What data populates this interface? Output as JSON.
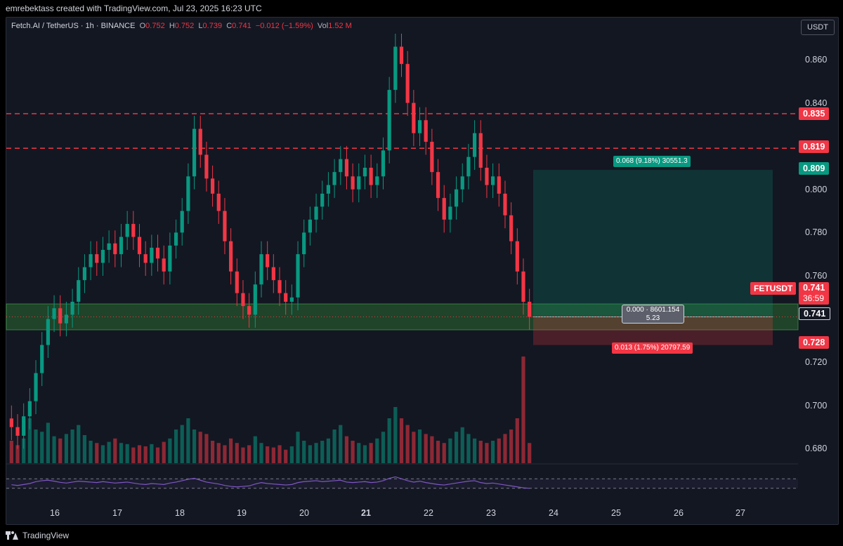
{
  "header": {
    "credit": "emrebektass created with TradingView.com, Jul 23, 2025 16:23 UTC"
  },
  "legend": {
    "symbol": "Fetch.AI / TetherUS · 1h · BINANCE",
    "open_label": "O",
    "open": "0.752",
    "high_label": "H",
    "high": "0.752",
    "low_label": "L",
    "low": "0.739",
    "close_label": "C",
    "close": "0.741",
    "change": "−0.012 (−1.59%)",
    "vol_label": "Vol",
    "vol": "1.52 M"
  },
  "currency": "USDT",
  "colors": {
    "up": "#089981",
    "down": "#f23645",
    "bg": "#131722",
    "zone": "#2e7d32",
    "rsi": "#7e57c2"
  },
  "chart_data": {
    "type": "candlestick",
    "y_ticks": [
      "0.860",
      "0.840",
      "0.800",
      "0.780",
      "0.760",
      "0.720",
      "0.700",
      "0.680"
    ],
    "x_ticks": [
      "16",
      "17",
      "18",
      "19",
      "20",
      "21",
      "22",
      "23",
      "24",
      "25",
      "26",
      "27"
    ],
    "ylim": [
      0.668,
      0.876
    ],
    "resistance_levels": [
      0.835,
      0.819
    ],
    "support_zone": [
      0.735,
      0.747
    ],
    "position": {
      "entry": 0.741,
      "target": 0.809,
      "stop": 0.728
    },
    "price_labels": {
      "r1": "0.835",
      "r2": "0.819",
      "tp": "0.809",
      "last": "0.741",
      "countdown": "36:59",
      "entry": "0.741",
      "sl": "0.728",
      "symbol": "FETUSDT"
    },
    "position_labels": {
      "tp": "0.068 (9.18%) 30551.3",
      "mid_line1": "0.000 · 8601.154",
      "mid_line2": "5.23",
      "sl": "0.013 (1.75%) 20797.59"
    },
    "closes": [
      0.69,
      0.686,
      0.695,
      0.702,
      0.715,
      0.728,
      0.74,
      0.745,
      0.738,
      0.742,
      0.748,
      0.758,
      0.764,
      0.77,
      0.766,
      0.772,
      0.775,
      0.77,
      0.778,
      0.784,
      0.778,
      0.77,
      0.766,
      0.773,
      0.768,
      0.762,
      0.774,
      0.78,
      0.79,
      0.806,
      0.828,
      0.816,
      0.805,
      0.798,
      0.79,
      0.776,
      0.762,
      0.752,
      0.746,
      0.742,
      0.756,
      0.77,
      0.764,
      0.758,
      0.752,
      0.748,
      0.75,
      0.77,
      0.78,
      0.786,
      0.792,
      0.798,
      0.802,
      0.808,
      0.814,
      0.806,
      0.8,
      0.806,
      0.81,
      0.802,
      0.806,
      0.818,
      0.846,
      0.866,
      0.858,
      0.84,
      0.826,
      0.832,
      0.822,
      0.808,
      0.796,
      0.786,
      0.792,
      0.8,
      0.806,
      0.815,
      0.826,
      0.81,
      0.802,
      0.806,
      0.798,
      0.788,
      0.776,
      0.762,
      0.748,
      0.741
    ],
    "volumes": [
      0.2,
      0.16,
      0.22,
      0.4,
      0.3,
      0.28,
      0.36,
      0.24,
      0.22,
      0.26,
      0.3,
      0.34,
      0.25,
      0.2,
      0.18,
      0.16,
      0.19,
      0.22,
      0.18,
      0.17,
      0.14,
      0.16,
      0.15,
      0.17,
      0.14,
      0.19,
      0.22,
      0.3,
      0.34,
      0.4,
      0.3,
      0.28,
      0.26,
      0.2,
      0.18,
      0.16,
      0.22,
      0.18,
      0.14,
      0.16,
      0.24,
      0.18,
      0.15,
      0.14,
      0.16,
      0.12,
      0.15,
      0.28,
      0.2,
      0.16,
      0.18,
      0.2,
      0.22,
      0.3,
      0.34,
      0.24,
      0.2,
      0.18,
      0.16,
      0.18,
      0.22,
      0.28,
      0.4,
      0.5,
      0.4,
      0.34,
      0.28,
      0.3,
      0.26,
      0.24,
      0.2,
      0.18,
      0.22,
      0.28,
      0.32,
      0.26,
      0.22,
      0.2,
      0.18,
      0.2,
      0.22,
      0.26,
      0.3,
      0.4,
      0.95,
      0.18
    ],
    "rsi": [
      45,
      42,
      46,
      50,
      58,
      62,
      64,
      60,
      55,
      52,
      56,
      60,
      58,
      56,
      54,
      58,
      55,
      52,
      54,
      56,
      52,
      48,
      46,
      50,
      48,
      46,
      52,
      56,
      62,
      68,
      72,
      64,
      56,
      52,
      48,
      42,
      38,
      36,
      38,
      40,
      48,
      54,
      50,
      48,
      46,
      44,
      46,
      54,
      58,
      60,
      62,
      58,
      60,
      62,
      64,
      56,
      54,
      56,
      58,
      54,
      56,
      62,
      72,
      78,
      70,
      62,
      56,
      60,
      54,
      50,
      46,
      44,
      48,
      52,
      56,
      60,
      62,
      54,
      50,
      52,
      48,
      44,
      40,
      36,
      32,
      30
    ],
    "rsi_levels": [
      70,
      30
    ]
  }
}
